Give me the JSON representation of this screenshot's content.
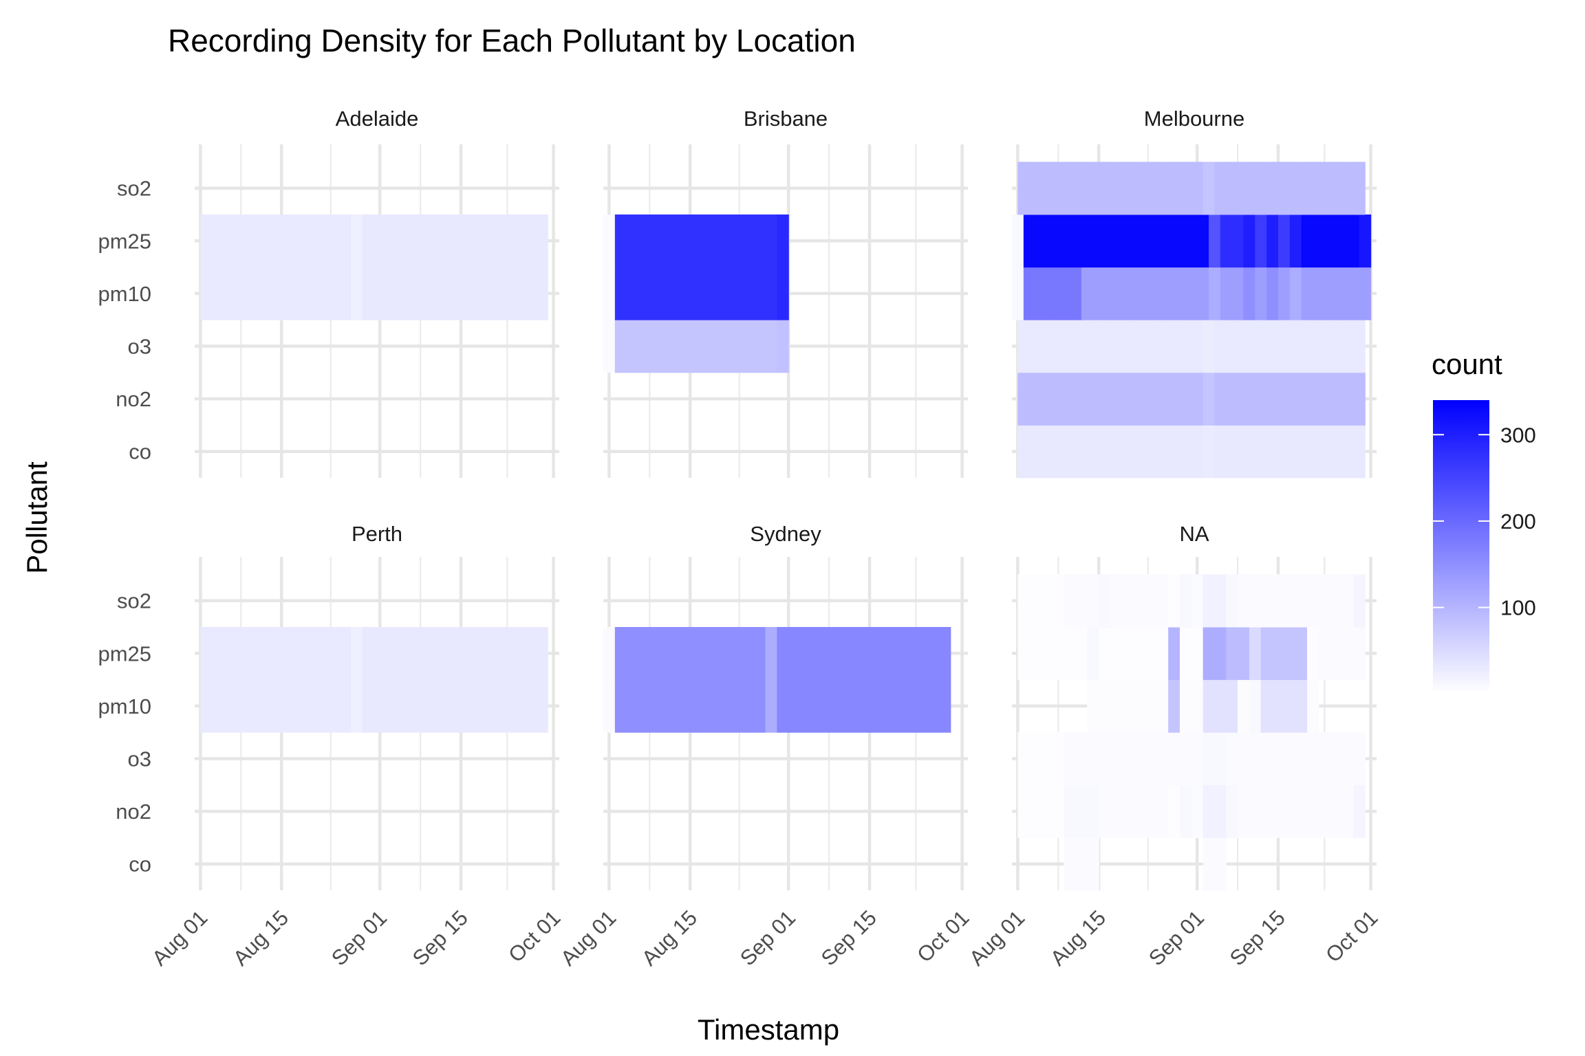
{
  "chart_data": {
    "type": "heatmap",
    "title": "Recording Density for Each Pollutant by Location",
    "xlabel": "Timestamp",
    "ylabel": "Pollutant",
    "x_ticks": [
      "Aug 01",
      "Aug 15",
      "Sep 01",
      "Sep 15",
      "Oct 01"
    ],
    "x_range": [
      "Jul 31",
      "Oct 02"
    ],
    "y_categories": [
      "co",
      "no2",
      "o3",
      "pm10",
      "pm25",
      "so2"
    ],
    "legend": {
      "title": "count",
      "ticks": [
        100,
        200,
        300
      ],
      "range": [
        1,
        340
      ],
      "low_color": "#ffffff",
      "high_color": "#0000ff",
      "position": "right"
    },
    "grid": true,
    "bin_days": 2,
    "facets": [
      {
        "name": "Adelaide",
        "series": [
          {
            "pollutant": "pm10",
            "start": "Aug 01",
            "counts": [
              30,
              30,
              30,
              30,
              30,
              30,
              30,
              30,
              30,
              30,
              30,
              30,
              30,
              22,
              32,
              32,
              32,
              32,
              32,
              32,
              32,
              32,
              32,
              32,
              32,
              32,
              32,
              32,
              32,
              32
            ]
          },
          {
            "pollutant": "pm25",
            "start": "Aug 01",
            "counts": [
              30,
              30,
              30,
              30,
              30,
              30,
              30,
              30,
              30,
              30,
              30,
              30,
              30,
              22,
              32,
              32,
              32,
              32,
              32,
              32,
              32,
              32,
              32,
              32,
              32,
              32,
              32,
              32,
              32,
              32
            ]
          }
        ]
      },
      {
        "name": "Brisbane",
        "series": [
          {
            "pollutant": "o3",
            "start": "Jul 31",
            "counts": [
              8,
              80,
              80,
              80,
              80,
              80,
              80,
              80,
              80,
              80,
              80,
              80,
              80,
              80,
              80,
              84
            ]
          },
          {
            "pollutant": "pm10",
            "start": "Jul 31",
            "counts": [
              8,
              275,
              275,
              275,
              275,
              275,
              275,
              275,
              275,
              275,
              275,
              275,
              275,
              275,
              275,
              285
            ]
          },
          {
            "pollutant": "pm25",
            "start": "Jul 31",
            "counts": [
              8,
              275,
              275,
              275,
              275,
              275,
              275,
              275,
              275,
              275,
              275,
              275,
              275,
              275,
              275,
              285
            ]
          }
        ]
      },
      {
        "name": "Melbourne",
        "series": [
          {
            "pollutant": "co",
            "start": "Aug 01",
            "counts": [
              32,
              32,
              32,
              32,
              32,
              32,
              32,
              32,
              32,
              32,
              32,
              32,
              32,
              32,
              32,
              32,
              28,
              32,
              32,
              32,
              32,
              32,
              32,
              32,
              32,
              32,
              32,
              32,
              32,
              32
            ]
          },
          {
            "pollutant": "no2",
            "start": "Aug 01",
            "counts": [
              90,
              90,
              90,
              90,
              90,
              90,
              90,
              90,
              90,
              90,
              90,
              90,
              90,
              90,
              90,
              90,
              80,
              90,
              90,
              90,
              90,
              90,
              90,
              90,
              90,
              90,
              90,
              90,
              90,
              90
            ]
          },
          {
            "pollutant": "o3",
            "start": "Aug 01",
            "counts": [
              30,
              30,
              30,
              30,
              30,
              30,
              30,
              30,
              30,
              30,
              30,
              30,
              30,
              30,
              30,
              30,
              26,
              30,
              30,
              30,
              30,
              30,
              30,
              30,
              30,
              30,
              30,
              30,
              30,
              30
            ]
          },
          {
            "pollutant": "pm10",
            "start": "Jul 31",
            "counts": [
              10,
              180,
              180,
              180,
              180,
              180,
              130,
              130,
              130,
              130,
              130,
              130,
              130,
              130,
              130,
              130,
              130,
              110,
              130,
              130,
              150,
              130,
              150,
              130,
              110,
              130,
              130,
              130,
              130,
              130,
              130
            ]
          },
          {
            "pollutant": "pm25",
            "start": "Jul 31",
            "counts": [
              10,
              330,
              330,
              330,
              330,
              330,
              330,
              330,
              330,
              330,
              330,
              330,
              330,
              330,
              330,
              330,
              330,
              230,
              280,
              280,
              300,
              260,
              300,
              260,
              300,
              330,
              330,
              330,
              330,
              330,
              310
            ]
          },
          {
            "pollutant": "so2",
            "start": "Aug 01",
            "counts": [
              90,
              90,
              90,
              90,
              90,
              90,
              90,
              90,
              90,
              90,
              90,
              90,
              90,
              90,
              90,
              90,
              80,
              90,
              90,
              90,
              90,
              90,
              90,
              90,
              90,
              90,
              90,
              90,
              90,
              90
            ]
          }
        ]
      },
      {
        "name": "Perth",
        "series": [
          {
            "pollutant": "pm10",
            "start": "Aug 01",
            "counts": [
              30,
              30,
              30,
              30,
              30,
              30,
              30,
              30,
              30,
              30,
              30,
              30,
              30,
              22,
              32,
              32,
              32,
              32,
              32,
              32,
              32,
              32,
              32,
              32,
              32,
              32,
              32,
              32,
              32,
              32
            ]
          },
          {
            "pollutant": "pm25",
            "start": "Aug 01",
            "counts": [
              30,
              30,
              30,
              30,
              30,
              30,
              30,
              30,
              30,
              30,
              30,
              30,
              30,
              22,
              32,
              32,
              32,
              32,
              32,
              32,
              32,
              32,
              32,
              32,
              32,
              32,
              32,
              32,
              32,
              32
            ]
          }
        ]
      },
      {
        "name": "Sydney",
        "series": [
          {
            "pollutant": "pm10",
            "start": "Jul 31",
            "counts": [
              8,
              150,
              150,
              150,
              150,
              150,
              150,
              150,
              150,
              150,
              150,
              150,
              150,
              150,
              110,
              160,
              160,
              160,
              160,
              160,
              160,
              160,
              160,
              160,
              160,
              160,
              160,
              160,
              160,
              160
            ]
          },
          {
            "pollutant": "pm25",
            "start": "Jul 31",
            "counts": [
              8,
              150,
              150,
              150,
              150,
              150,
              150,
              150,
              150,
              150,
              150,
              150,
              150,
              150,
              110,
              160,
              160,
              160,
              160,
              160,
              160,
              160,
              160,
              160,
              160,
              160,
              160,
              160,
              160,
              160
            ]
          }
        ]
      },
      {
        "name": "NA",
        "series": [
          {
            "pollutant": "co",
            "start": "Aug 01",
            "counts": [
              0,
              0,
              0,
              0,
              8,
              8,
              8,
              0,
              0,
              0,
              0,
              0,
              0,
              0,
              0,
              0,
              8,
              8,
              0,
              0,
              0,
              0,
              0,
              0,
              0,
              0,
              0,
              0,
              0,
              0
            ]
          },
          {
            "pollutant": "no2",
            "start": "Aug 01",
            "counts": [
              3,
              3,
              3,
              3,
              10,
              10,
              10,
              6,
              6,
              6,
              6,
              6,
              6,
              3,
              10,
              6,
              20,
              20,
              10,
              6,
              6,
              6,
              6,
              6,
              6,
              6,
              6,
              6,
              6,
              14
            ]
          },
          {
            "pollutant": "o3",
            "start": "Aug 01",
            "counts": [
              3,
              3,
              3,
              3,
              8,
              8,
              8,
              6,
              6,
              6,
              6,
              6,
              6,
              6,
              6,
              6,
              10,
              10,
              6,
              6,
              6,
              6,
              6,
              6,
              6,
              6,
              6,
              6,
              6,
              6
            ]
          },
          {
            "pollutant": "pm10",
            "start": "Aug 01",
            "counts": [
              0,
              0,
              0,
              0,
              0,
              0,
              5,
              5,
              5,
              5,
              5,
              5,
              5,
              80,
              5,
              5,
              40,
              40,
              40,
              5,
              10,
              40,
              40,
              40,
              40,
              5,
              0,
              0,
              0,
              0
            ]
          },
          {
            "pollutant": "pm25",
            "start": "Aug 01",
            "counts": [
              4,
              4,
              4,
              4,
              4,
              4,
              10,
              4,
              4,
              4,
              4,
              4,
              4,
              100,
              4,
              4,
              110,
              110,
              90,
              90,
              50,
              80,
              80,
              80,
              80,
              4,
              8,
              8,
              8,
              8
            ]
          },
          {
            "pollutant": "so2",
            "start": "Aug 01",
            "counts": [
              3,
              3,
              3,
              3,
              6,
              6,
              6,
              10,
              6,
              6,
              6,
              6,
              6,
              3,
              10,
              6,
              20,
              20,
              10,
              6,
              6,
              6,
              6,
              6,
              6,
              6,
              6,
              6,
              6,
              14
            ]
          }
        ]
      }
    ]
  }
}
